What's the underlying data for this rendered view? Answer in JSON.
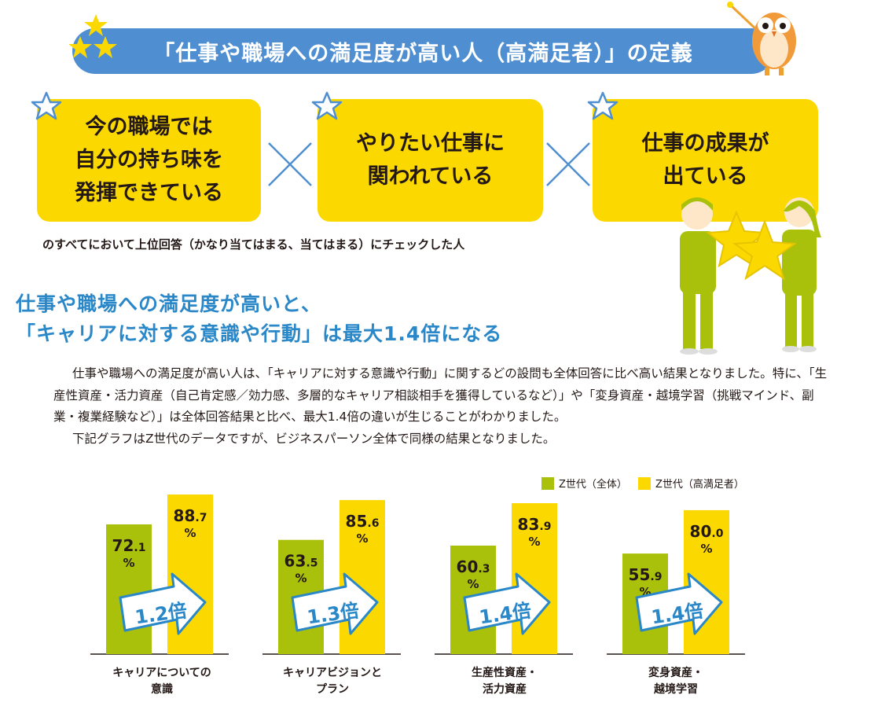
{
  "banner": {
    "title": "「仕事や職場への満足度が高い人（高満足者）」の定義"
  },
  "criteria": [
    {
      "label": "今の職場では\n自分の持ち味を\n発揮できている"
    },
    {
      "label": "やりたい仕事に\n関われている"
    },
    {
      "label": "仕事の成果が\n出ている"
    }
  ],
  "criteria_note": "のすべてにおいて上位回答（かなり当てはまる、当てはまる）にチェックした人",
  "headline": {
    "line1": "仕事や職場への満足度が高いと、",
    "line2": "「キャリアに対する意識や行動」は最大1.4倍になる"
  },
  "body": {
    "p1": "仕事や職場への満足度が高い人は、「キャリアに対する意識や行動」に関するどの設問も全体回答に比べ高い結果となりました。特に、「生産性資産・活力資産（自己肯定感／効力感、多層的なキャリア相談相手を獲得しているなど）」や「変身資産・越境学習（挑戦マインド、副業・複業経験など）」は全体回答結果と比べ、最大1.4倍の違いが生じることがわかりました。",
    "p2": "下記グラフはZ世代のデータですが、ビジネスパーソン全体で同様の結果となりました。"
  },
  "chart_data": {
    "type": "bar",
    "categories": [
      "キャリアについての\n意識",
      "キャリアビジョンと\nプラン",
      "生産性資産・\n活力資産",
      "変身資産・\n越境学習"
    ],
    "series": [
      {
        "name": "Z世代（全体）",
        "values": [
          72.1,
          63.5,
          60.3,
          55.9
        ],
        "color": "#aac10b"
      },
      {
        "name": "Z世代（高満足者）",
        "values": [
          88.7,
          85.6,
          83.9,
          80.0
        ],
        "color": "#fbd900"
      }
    ],
    "value_labels": {
      "all": [
        [
          "72",
          ".1"
        ],
        [
          "63",
          ".5"
        ],
        [
          "60",
          ".3"
        ],
        [
          "55",
          ".9"
        ]
      ],
      "high": [
        [
          "88",
          ".7"
        ],
        [
          "85",
          ".6"
        ],
        [
          "83",
          ".9"
        ],
        [
          "80",
          ".0"
        ]
      ]
    },
    "percent_sign": "%",
    "ratios": [
      "1.2倍",
      "1.3倍",
      "1.4倍",
      "1.4倍"
    ],
    "ylim": [
      0,
      100
    ],
    "title": "",
    "xlabel": "",
    "ylabel": ""
  },
  "colors": {
    "banner": "#4f8fd1",
    "yellow": "#fbd900",
    "green": "#aac10b",
    "headline": "#2a87c8"
  }
}
